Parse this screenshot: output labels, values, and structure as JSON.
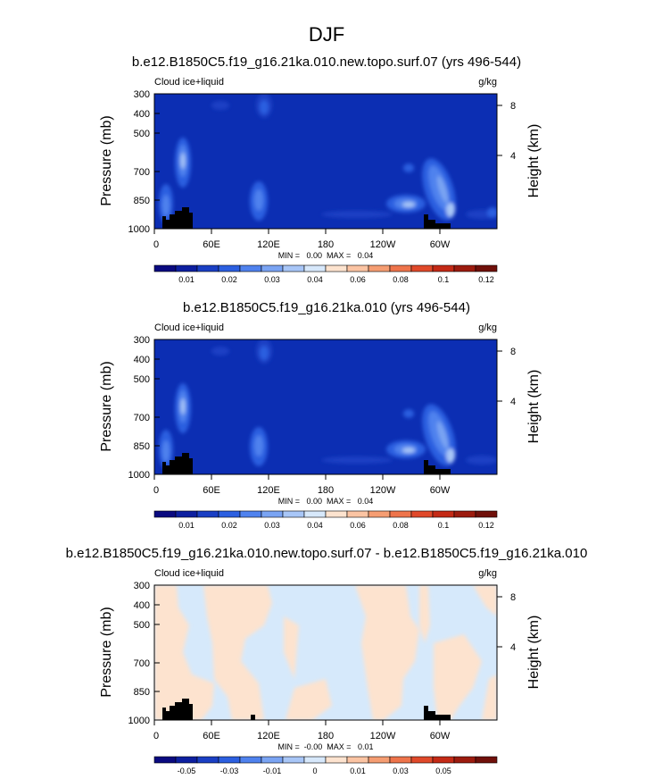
{
  "page_title": "DJF",
  "colors": {
    "ocean_blue": "#0c2eb3",
    "panel_bg_diff": "#d6e9fb",
    "diff_pos": "#fde3cf",
    "topography": "#000000"
  },
  "chart_data": [
    {
      "type": "contour",
      "title": "b.e12.B1850C5.f19_g16.21ka.010.new.topo.surf.07 (yrs 496-544)",
      "left_label": "Cloud ice+liquid",
      "right_label": "g/kg",
      "ylabel": "Pressure (mb)",
      "y2label": "Height (km)",
      "yticks": [
        "300",
        "400",
        "500",
        "700",
        "850",
        "1000"
      ],
      "y2ticks": [
        "8",
        "4"
      ],
      "xticks": [
        "0",
        "60E",
        "120E",
        "180",
        "120W",
        "60W"
      ],
      "ylim": [
        1000,
        300
      ],
      "minmax": "MIN =   0.00  MAX =   0.04",
      "colorbar": {
        "labels": [
          "0.01",
          "0.02",
          "0.03",
          "0.04",
          "0.06",
          "0.08",
          "0.1",
          "0.12"
        ],
        "colors": [
          "#0a0a80",
          "#0d1fa0",
          "#1a3fc4",
          "#2c5fe0",
          "#4f82ee",
          "#7aa4f3",
          "#a8c6f7",
          "#d7e8fb",
          "#fde3cf",
          "#fbc4a3",
          "#f59d72",
          "#ee744b",
          "#e0492a",
          "#c42a16",
          "#9c1b0e",
          "#70100a"
        ]
      }
    },
    {
      "type": "contour",
      "title": "b.e12.B1850C5.f19_g16.21ka.010 (yrs 496-544)",
      "left_label": "Cloud ice+liquid",
      "right_label": "g/kg",
      "ylabel": "Pressure (mb)",
      "y2label": "Height (km)",
      "yticks": [
        "300",
        "400",
        "500",
        "700",
        "850",
        "1000"
      ],
      "y2ticks": [
        "8",
        "4"
      ],
      "xticks": [
        "0",
        "60E",
        "120E",
        "180",
        "120W",
        "60W"
      ],
      "ylim": [
        1000,
        300
      ],
      "minmax": "MIN =   0.00  MAX =   0.04",
      "colorbar": {
        "labels": [
          "0.01",
          "0.02",
          "0.03",
          "0.04",
          "0.06",
          "0.08",
          "0.1",
          "0.12"
        ],
        "colors": [
          "#0a0a80",
          "#0d1fa0",
          "#1a3fc4",
          "#2c5fe0",
          "#4f82ee",
          "#7aa4f3",
          "#a8c6f7",
          "#d7e8fb",
          "#fde3cf",
          "#fbc4a3",
          "#f59d72",
          "#ee744b",
          "#e0492a",
          "#c42a16",
          "#9c1b0e",
          "#70100a"
        ]
      }
    },
    {
      "type": "contour",
      "title": "b.e12.B1850C5.f19_g16.21ka.010.new.topo.surf.07 - b.e12.B1850C5.f19_g16.21ka.010",
      "left_label": "Cloud ice+liquid",
      "right_label": "g/kg",
      "ylabel": "Pressure (mb)",
      "y2label": "Height (km)",
      "yticks": [
        "300",
        "400",
        "500",
        "700",
        "850",
        "1000"
      ],
      "y2ticks": [
        "8",
        "4"
      ],
      "xticks": [
        "0",
        "60E",
        "120E",
        "180",
        "120W",
        "60W"
      ],
      "ylim": [
        1000,
        300
      ],
      "minmax": "MIN =  -0.00  MAX =   0.01",
      "colorbar": {
        "labels": [
          "-0.05",
          "-0.03",
          "-0.01",
          "0",
          "0.01",
          "0.03",
          "0.05"
        ],
        "colors": [
          "#0a0a80",
          "#0d1fa0",
          "#1a3fc4",
          "#2c5fe0",
          "#4f82ee",
          "#7aa4f3",
          "#a8c6f7",
          "#d7e8fb",
          "#fde3cf",
          "#fbc4a3",
          "#f59d72",
          "#ee744b",
          "#e0492a",
          "#c42a16",
          "#9c1b0e",
          "#70100a"
        ]
      }
    }
  ]
}
